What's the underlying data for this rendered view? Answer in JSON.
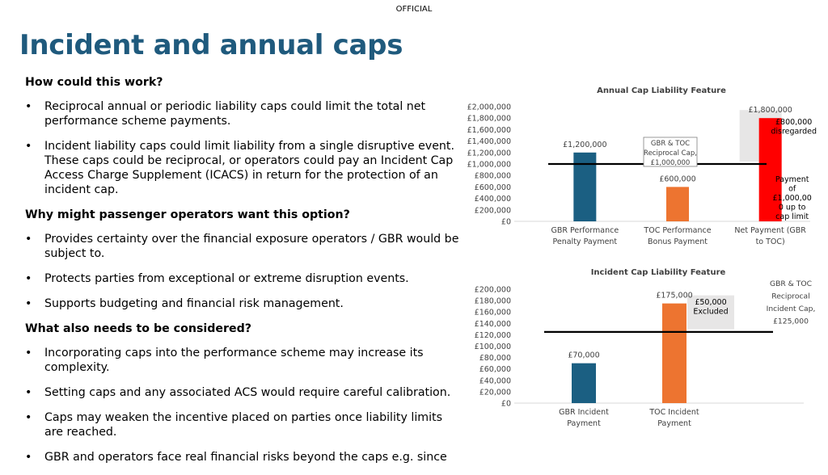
{
  "header": {
    "classification": "OFFICIAL",
    "title": "Incident and annual caps"
  },
  "sections": [
    {
      "heading": "How could this work?",
      "bullets": [
        "Reciprocal annual or periodic liability caps could limit the total net performance scheme payments.",
        "Incident liability caps could limit liability from a single disruptive event. These caps could be reciprocal, or operators could pay an Incident Cap Access Charge Supplement (ICACS) in return for the protection of an incident cap."
      ]
    },
    {
      "heading": "Why might passenger operators want this option?",
      "bullets": [
        "Provides certainty over the financial exposure operators / GBR would be subject to.",
        "Protects parties from exceptional or extreme disruption events.",
        "Supports budgeting and financial risk management."
      ]
    },
    {
      "heading": "What also needs to be considered?",
      "bullets": [
        "Incorporating caps into the performance scheme may increase its complexity.",
        "Setting caps and any associated ACS would require careful calibration.",
        "Caps may weaken the incentive placed on parties once liability limits are reached.",
        "GBR and operators face real financial risks beyond the caps e.g. since"
      ]
    }
  ],
  "chart_data": [
    {
      "type": "bar",
      "title": "Annual Cap Liability Feature",
      "categories": [
        [
          "GBR Performance",
          "Penalty Payment"
        ],
        [
          "TOC Performance",
          "Bonus Payment"
        ],
        [
          "Net Payment (GBR",
          "to TOC)"
        ]
      ],
      "values": [
        1200000,
        600000,
        1800000
      ],
      "data_labels": [
        "£1,200,000",
        "£600,000",
        "£1,800,000"
      ],
      "bar_colors": [
        "#1b5f82",
        "#ed7430",
        "#ff0000"
      ],
      "ylim": [
        0,
        2000000
      ],
      "yticks": [
        "£0",
        "£200,000",
        "£400,000",
        "£600,000",
        "£800,000",
        "£1,000,000",
        "£1,200,000",
        "£1,400,000",
        "£1,600,000",
        "£1,800,000",
        "£2,000,000"
      ],
      "cap_value": 1000000,
      "cap_label": [
        "GBR & TOC",
        "Reciprocal Cap,",
        "£1,000,000"
      ],
      "annotations": {
        "excluded": [
          "£800,000",
          "disregarded"
        ],
        "paid": [
          "Payment",
          "of",
          "£1,000,00",
          "0 up to",
          "cap limit"
        ]
      }
    },
    {
      "type": "bar",
      "title": "Incident Cap Liability Feature",
      "categories": [
        [
          "GBR Incident",
          "Payment"
        ],
        [
          "TOC Incident",
          "Payment"
        ],
        [
          "",
          ""
        ]
      ],
      "values": [
        70000,
        175000,
        null
      ],
      "data_labels": [
        "£70,000",
        "£175,000",
        ""
      ],
      "bar_colors": [
        "#1b5f82",
        "#ed7430",
        "#ff0000"
      ],
      "ylim": [
        0,
        200000
      ],
      "yticks": [
        "£0",
        "£20,000",
        "£40,000",
        "£60,000",
        "£80,000",
        "£100,000",
        "£120,000",
        "£140,000",
        "£160,000",
        "£180,000",
        "£200,000"
      ],
      "cap_value": 125000,
      "cap_label": [
        "GBR & TOC",
        "Reciprocal",
        "Incident Cap,",
        "£125,000"
      ],
      "annotations": {
        "excluded": [
          "£50,000",
          "Excluded"
        ]
      }
    }
  ]
}
